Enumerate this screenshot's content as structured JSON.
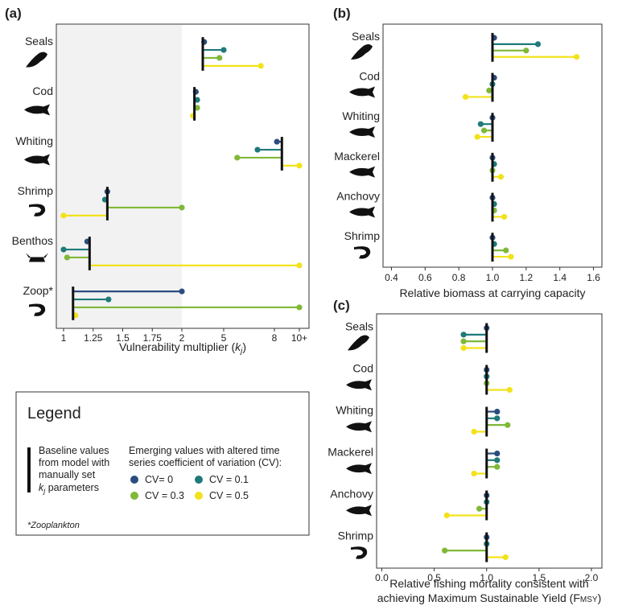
{
  "colors": {
    "cv0": "#2b4c7e",
    "cv01": "#1f7a7a",
    "cv03": "#7fb838",
    "cv05": "#f2e21a",
    "baseline": "#111111",
    "shade": "#f2f2f2"
  },
  "chart_data": [
    {
      "panel": "(a)",
      "type": "lollipop",
      "xlabel": "Vulnerability multiplier (k_j)",
      "xlabel_main": "Vulnerability multiplier (",
      "xlabel_k": "k",
      "xlabel_sub": "j",
      "xlabel_close": ")",
      "tick_labels": [
        "1",
        "1.25",
        "1.5",
        "1.75",
        "2",
        "5",
        "8",
        "10+"
      ],
      "tick_values": [
        1,
        1.25,
        1.5,
        1.75,
        2,
        5,
        8,
        10
      ],
      "axis_note": "Scale is linear from 1 to 2 (shaded) and compressed from 2 to 10+",
      "categories": [
        "Seals",
        "Cod",
        "Whiting",
        "Shrimp",
        "Benthos",
        "Zoop*"
      ],
      "baseline": [
        3.5,
        2.9,
        8.6,
        1.37,
        1.22,
        1.08
      ],
      "series": [
        {
          "name": "CV= 0",
          "values": [
            3.6,
            3.0,
            8.2,
            1.37,
            1.2,
            2.0
          ]
        },
        {
          "name": "CV = 0.1",
          "values": [
            5.0,
            3.1,
            7.0,
            1.35,
            1.0,
            1.38
          ]
        },
        {
          "name": "CV = 0.3",
          "values": [
            4.7,
            3.1,
            5.8,
            2.0,
            1.03,
            10
          ]
        },
        {
          "name": "CV = 0.5",
          "values": [
            7.2,
            2.8,
            10,
            1.0,
            10,
            1.1
          ]
        }
      ]
    },
    {
      "panel": "(b)",
      "type": "lollipop",
      "xlabel": "Relative biomass at carrying capacity",
      "tick_labels": [
        "0.4",
        "0.6",
        "0.8",
        "1.0",
        "1.2",
        "1.4",
        "1.6"
      ],
      "tick_values": [
        0.4,
        0.6,
        0.8,
        1.0,
        1.2,
        1.4,
        1.6
      ],
      "xlim": [
        0.35,
        1.65
      ],
      "baseline_value": 1.0,
      "categories": [
        "Seals",
        "Cod",
        "Whiting",
        "Mackerel",
        "Anchovy",
        "Shrimp"
      ],
      "series": [
        {
          "name": "CV= 0",
          "values": [
            1.01,
            1.01,
            1.0,
            1.0,
            1.0,
            1.0
          ]
        },
        {
          "name": "CV = 0.1",
          "values": [
            1.27,
            1.0,
            0.93,
            1.01,
            1.01,
            1.01
          ]
        },
        {
          "name": "CV = 0.3",
          "values": [
            1.2,
            0.98,
            0.95,
            1.0,
            1.01,
            1.08
          ]
        },
        {
          "name": "CV = 0.5",
          "values": [
            1.5,
            0.84,
            0.91,
            1.05,
            1.07,
            1.11
          ]
        }
      ]
    },
    {
      "panel": "(c)",
      "type": "lollipop",
      "xlabel_line1": "Relative fishing mortality consistent with",
      "xlabel_line2a": "achieving Maximum Sustainable Yield (F",
      "xlabel_line2b": "MSY",
      "xlabel_line2c": ")",
      "tick_labels": [
        "0.0",
        "0.5",
        "1.0",
        "1.5",
        "2.0"
      ],
      "tick_values": [
        0,
        0.5,
        1.0,
        1.5,
        2.0
      ],
      "xlim": [
        -0.05,
        2.1
      ],
      "baseline_value": 1.0,
      "categories": [
        "Seals",
        "Cod",
        "Whiting",
        "Mackerel",
        "Anchovy",
        "Shrimp"
      ],
      "series": [
        {
          "name": "CV= 0",
          "values": [
            1.0,
            1.0,
            1.1,
            1.1,
            1.0,
            1.0
          ]
        },
        {
          "name": "CV = 0.1",
          "values": [
            0.78,
            1.0,
            1.1,
            1.1,
            1.0,
            1.0
          ]
        },
        {
          "name": "CV = 0.3",
          "values": [
            0.78,
            1.0,
            1.2,
            1.1,
            0.93,
            0.6
          ]
        },
        {
          "name": "CV = 0.5",
          "values": [
            0.78,
            1.22,
            0.88,
            0.88,
            0.62,
            1.18
          ]
        }
      ]
    }
  ],
  "legend": {
    "title": "Legend",
    "baseline_line1": "Baseline values",
    "baseline_line2": "from model with",
    "baseline_line3": "manually set",
    "baseline_line4_k": "k",
    "baseline_line4_sub": "j",
    "baseline_line4_rest": " parameters",
    "emerging_line1": "Emerging values with altered time",
    "emerging_line2": "series coefficient of variation (CV):",
    "items": [
      "CV= 0",
      "CV = 0.1",
      "CV = 0.3",
      "CV = 0.5"
    ],
    "footnote": "*Zooplankton"
  }
}
